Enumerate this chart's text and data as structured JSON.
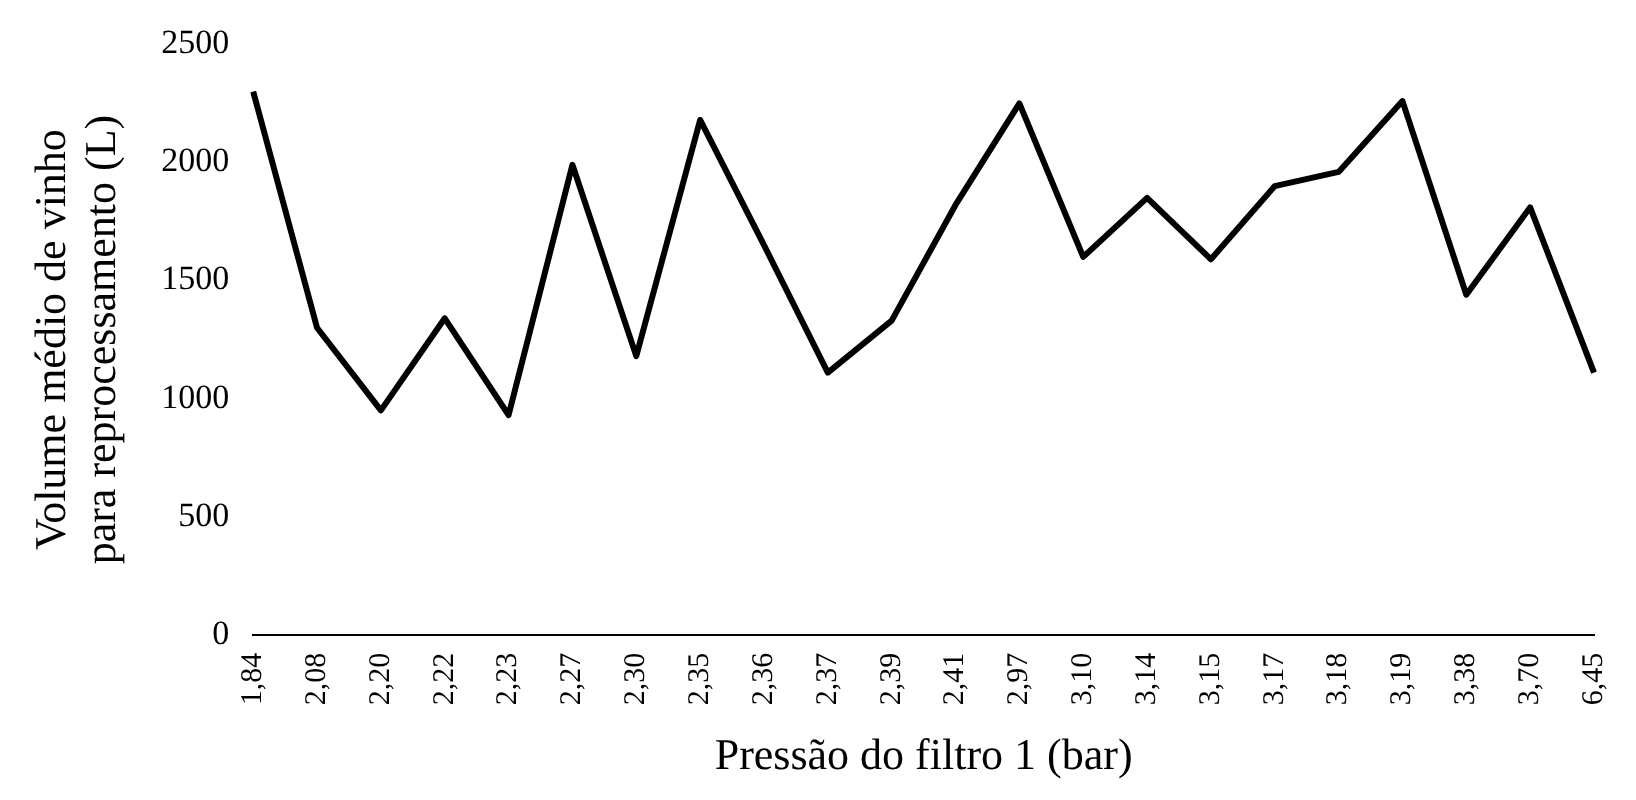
{
  "chart_data": {
    "type": "line",
    "xlabel": "Pressão do filtro 1 (bar)",
    "ylabel": "Volume médio de vinho para reprocessamento (L)",
    "categories": [
      "1,84",
      "2,08",
      "2,20",
      "2,22",
      "2,23",
      "2,27",
      "2,30",
      "2,35",
      "2,36",
      "2,37",
      "2,39",
      "2,41",
      "2,97",
      "3,10",
      "3,14",
      "3,15",
      "3,17",
      "3,18",
      "3,19",
      "3,38",
      "3,70",
      "6,45"
    ],
    "series": [
      {
        "color": "#000000",
        "values": [
          2300,
          1300,
          950,
          1340,
          930,
          1990,
          1180,
          2180,
          1650,
          1110,
          1330,
          1820,
          2250,
          1600,
          1850,
          1590,
          1900,
          1960,
          2260,
          1440,
          1810,
          1110
        ]
      }
    ],
    "ylim": [
      0,
      2500
    ],
    "yticks": [
      0,
      500,
      1000,
      1500,
      2000,
      2500
    ],
    "grid": false,
    "legend": false,
    "marker": "none",
    "line_style": "solid"
  }
}
